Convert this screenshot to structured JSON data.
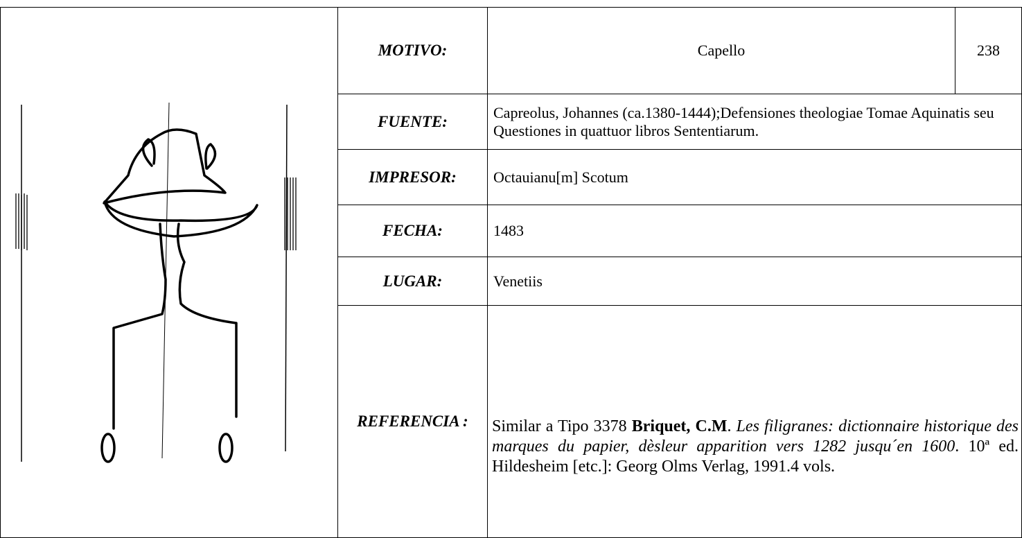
{
  "record": {
    "labels": {
      "motivo": "MOTIVO:",
      "fuente": "FUENTE:",
      "impresor": "IMPRESOR:",
      "fecha": "FECHA:",
      "lugar": "LUGAR:",
      "referencia": "REFERENCIA :"
    },
    "motivo": "Capello",
    "number": "238",
    "fuente": "Capreolus, Johannes (ca.1380-1444);Defensiones theologiae Tomae Aquinatis seu Questiones in quattuor libros Sententiarum.",
    "impresor": "Octauianu[m] Scotum",
    "fecha": "1483",
    "lugar": "Venetiis",
    "referencia": [
      "Similar a Tipo 3378",
      "Briquet, C.M",
      "Les filigranes: dictionnaire historique des marques du papier, dèsleur apparition vers 1282 jusqu´en 1600",
      "10ª ed. Hildesheim [etc.]: Georg Olms Verlag, 1991.4 vols."
    ]
  }
}
